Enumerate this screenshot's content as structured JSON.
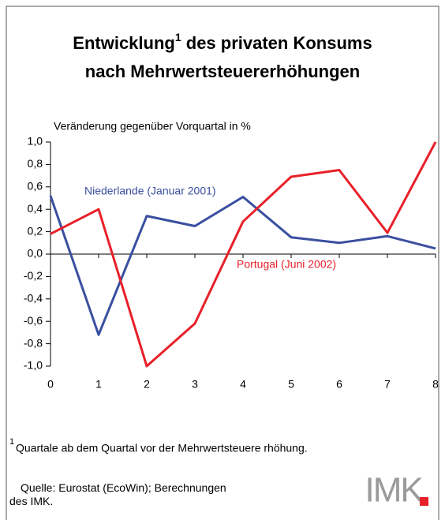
{
  "chart_data": {
    "type": "line",
    "title_parts": [
      "Entwicklung",
      "1",
      " des privaten Konsums",
      "nach Mehrwertsteuererhöhungen"
    ],
    "y_label": "Veränderung gegenüber Vorquartal in %",
    "x": [
      0,
      1,
      2,
      3,
      4,
      5,
      6,
      7,
      8
    ],
    "xlim": [
      0,
      8
    ],
    "xticks": [
      0,
      1,
      2,
      3,
      4,
      5,
      6,
      7,
      8
    ],
    "ylim": [
      -1.0,
      1.0
    ],
    "yticks": [
      {
        "value": 1.0,
        "label": "1,0"
      },
      {
        "value": 0.8,
        "label": "0,8"
      },
      {
        "value": 0.6,
        "label": "0,6"
      },
      {
        "value": 0.4,
        "label": "0,4"
      },
      {
        "value": 0.2,
        "label": "0,2"
      },
      {
        "value": 0.0,
        "label": "0,0"
      },
      {
        "value": -0.2,
        "label": "-0,2"
      },
      {
        "value": -0.4,
        "label": "-0,4"
      },
      {
        "value": -0.6,
        "label": "-0,6"
      },
      {
        "value": -0.8,
        "label": "-0,8"
      },
      {
        "value": -1.0,
        "label": "-1,0"
      }
    ],
    "series": [
      {
        "name": "Niederlande (Januar 2001)",
        "color": "#3a4fa0",
        "values": [
          0.52,
          -0.72,
          0.34,
          0.25,
          0.51,
          0.15,
          0.1,
          0.16,
          0.05
        ]
      },
      {
        "name": "Portugal (Juni 2002)",
        "color": "#e8202a",
        "values": [
          0.18,
          0.4,
          -1.0,
          -0.62,
          0.29,
          0.69,
          0.75,
          0.19,
          1.0
        ]
      }
    ],
    "footnote_mark": "1",
    "footnote": "Quartale ab dem Quartal vor der Mehrwertsteuere rhöhung.",
    "source": "Quelle: Eurostat (EcoWin); Berechnungen des IMK.",
    "logo": "IMK."
  }
}
